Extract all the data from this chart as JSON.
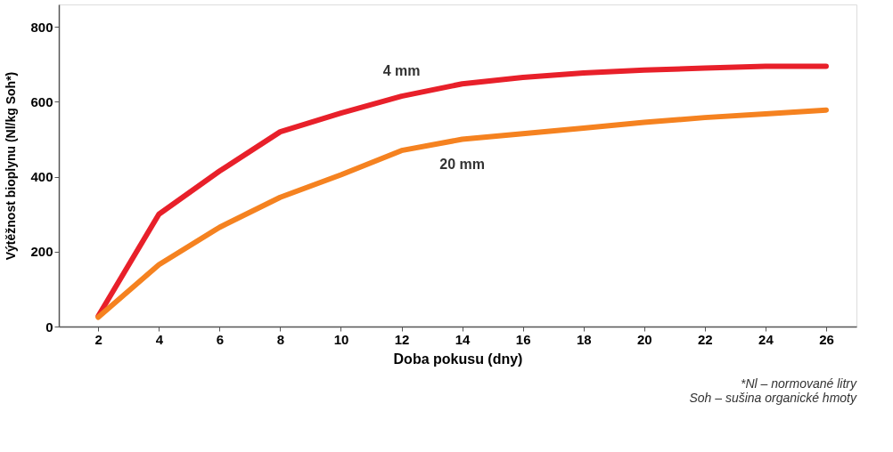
{
  "chart_data": {
    "type": "line",
    "xlabel": "Doba pokusu (dny)",
    "ylabel": "Výtěžnost bioplynu (Nl/kg Soh*)",
    "x": [
      2,
      4,
      6,
      8,
      10,
      12,
      14,
      16,
      18,
      20,
      22,
      24,
      26
    ],
    "series": [
      {
        "name": "4 mm",
        "color": "#e8202a",
        "values": [
          28,
          300,
          415,
          520,
          570,
          615,
          648,
          665,
          677,
          685,
          690,
          695,
          695
        ]
      },
      {
        "name": "20 mm",
        "color": "#f58220",
        "values": [
          25,
          165,
          265,
          345,
          405,
          470,
          500,
          515,
          530,
          545,
          558,
          568,
          578
        ]
      }
    ],
    "xlim": [
      0.7,
      27
    ],
    "xticks": [
      2,
      4,
      6,
      8,
      10,
      12,
      14,
      16,
      18,
      20,
      22,
      24,
      26
    ],
    "ylim": [
      0,
      860
    ],
    "yticks": [
      0,
      200,
      400,
      600,
      800
    ],
    "grid": false,
    "legend": false,
    "marker": "none",
    "line_style": "solid",
    "annotations": [
      "*Nl – normované litry",
      "Soh – sušina organické hmoty"
    ]
  }
}
